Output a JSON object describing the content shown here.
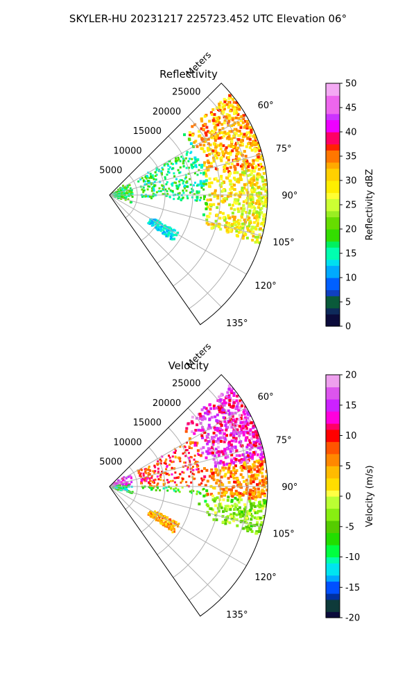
{
  "suptitle": "SKYLER-HU  20231217  225723.452 UTC Elevation 06°",
  "chart_data": [
    {
      "type": "polar-ppi",
      "title": "Reflectivity",
      "range_label": "Meters",
      "range_ticks": [
        5000,
        10000,
        15000,
        20000,
        25000
      ],
      "range_max": 28500,
      "azimuth_range": [
        45,
        145
      ],
      "azimuth_ticks": [
        "60°",
        "75°",
        "90°",
        "105°",
        "120°",
        "135°"
      ],
      "azimuth_tick_values": [
        60,
        75,
        90,
        105,
        120,
        135
      ],
      "grid": true,
      "colorbar": {
        "label": "Reflectivity dBZ",
        "range": [
          0,
          50
        ],
        "ticks": [
          0,
          5,
          10,
          15,
          20,
          25,
          30,
          35,
          40,
          45,
          50
        ]
      }
    },
    {
      "type": "polar-ppi",
      "title": "Velocity",
      "range_label": "Meters",
      "range_ticks": [
        5000,
        10000,
        15000,
        20000,
        25000
      ],
      "range_max": 28500,
      "azimuth_range": [
        45,
        145
      ],
      "azimuth_ticks": [
        "60°",
        "75°",
        "90°",
        "105°",
        "120°",
        "135°"
      ],
      "azimuth_tick_values": [
        60,
        75,
        90,
        105,
        120,
        135
      ],
      "grid": true,
      "colorbar": {
        "label": "Velocity (m/s)",
        "range": [
          -20,
          20
        ],
        "ticks": [
          -20,
          -15,
          -10,
          -5,
          0,
          5,
          10,
          15,
          20
        ]
      }
    }
  ]
}
